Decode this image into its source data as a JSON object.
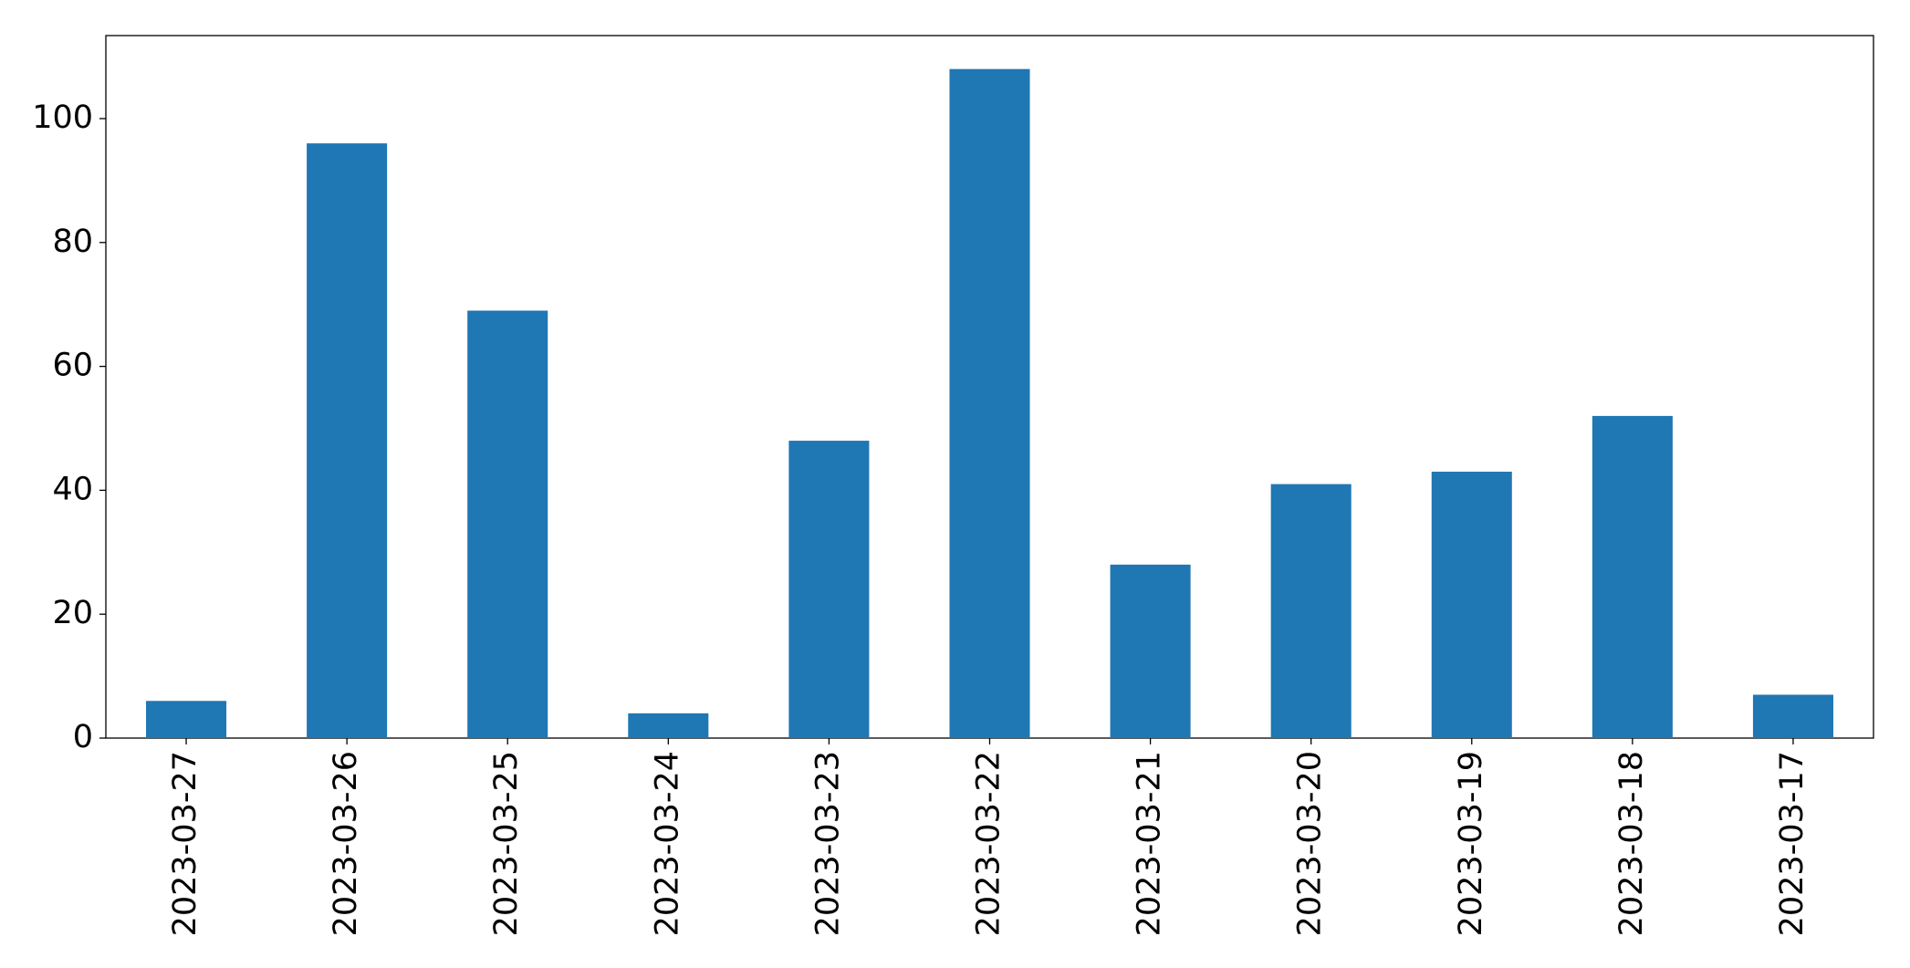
{
  "chart_data": {
    "type": "bar",
    "categories": [
      "2023-03-27",
      "2023-03-26",
      "2023-03-25",
      "2023-03-24",
      "2023-03-23",
      "2023-03-22",
      "2023-03-21",
      "2023-03-20",
      "2023-03-19",
      "2023-03-18",
      "2023-03-17"
    ],
    "values": [
      6,
      96,
      69,
      4,
      48,
      108,
      28,
      41,
      43,
      52,
      7
    ],
    "color": "#1f77b4",
    "ylim": [
      0,
      113.4
    ],
    "yticks": [
      0,
      20,
      40,
      60,
      80,
      100
    ],
    "grid": false
  }
}
